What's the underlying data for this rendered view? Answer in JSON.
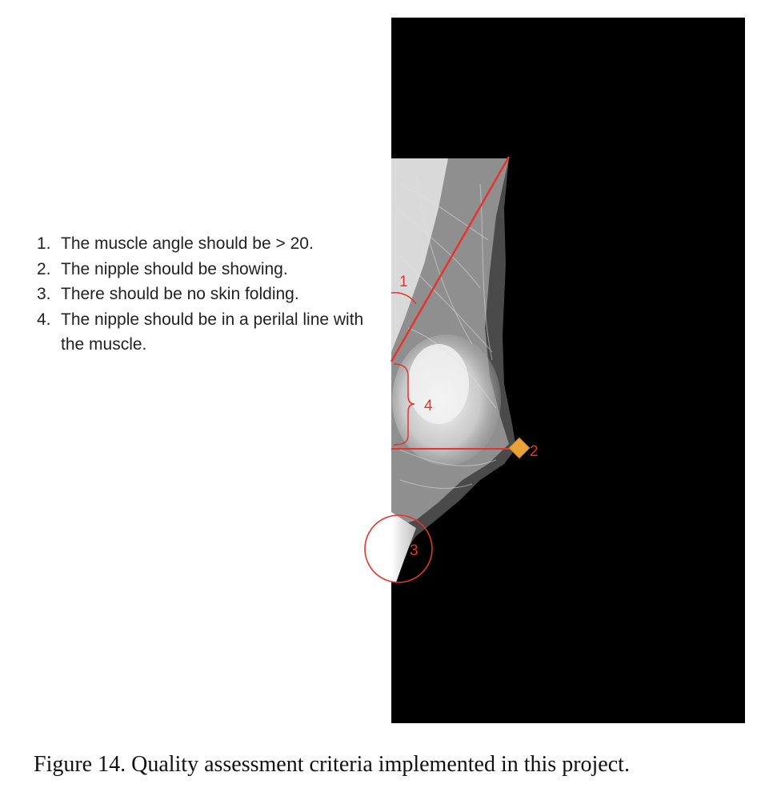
{
  "criteria": [
    {
      "number": "1.",
      "text": "The muscle angle should be > 20."
    },
    {
      "number": "2.",
      "text": "The nipple should be showing."
    },
    {
      "number": "3.",
      "text": "There should be no skin folding."
    },
    {
      "number": "4.",
      "text": "The nipple should be in a perilal line with the muscle."
    }
  ],
  "annotations": {
    "muscle_angle": "1",
    "nipple": "2",
    "skin_fold": "3",
    "distance": "4"
  },
  "colors": {
    "annotation": "#e5342f",
    "nipple_marker": "#e8a238",
    "image_background": "#000000"
  },
  "caption": "Figure 14. Quality assessment criteria implemented in this project."
}
